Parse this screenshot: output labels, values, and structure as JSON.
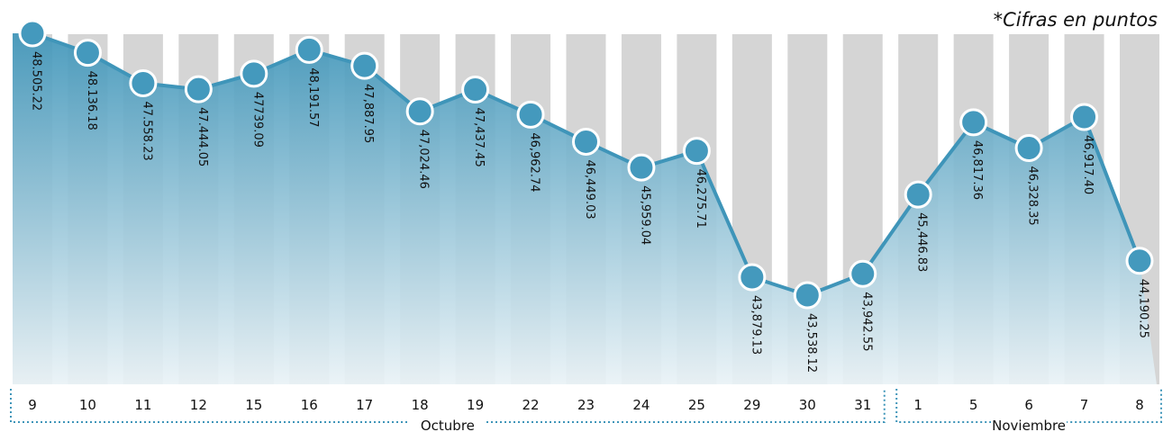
{
  "note": "*Cifras en puntos",
  "colors": {
    "area_top": "#3f95b9",
    "area_bottom": "#e9f2f6",
    "column": "#d5d5d5",
    "line": "#3f95b9",
    "marker_fill": "#4499bd",
    "marker_stroke": "#ffffff",
    "bracket": "#3f95b9"
  },
  "chart_data": {
    "type": "area",
    "title": "",
    "xlabel": "",
    "ylabel": "",
    "categories": [
      "9",
      "10",
      "11",
      "12",
      "15",
      "16",
      "17",
      "18",
      "19",
      "22",
      "23",
      "24",
      "25",
      "29",
      "30",
      "31",
      "1",
      "5",
      "6",
      "7",
      "8"
    ],
    "values": [
      48505.22,
      48136.18,
      47558.23,
      47444.05,
      47739.09,
      48191.57,
      47887.95,
      47024.46,
      47437.45,
      46962.74,
      46449.03,
      45959.04,
      46275.71,
      43879.13,
      43538.12,
      43942.55,
      45446.83,
      46817.36,
      46328.35,
      46917.4,
      44190.25
    ],
    "value_labels": [
      "48.505.22",
      "48.136.18",
      "47.558.23",
      "47.444.05",
      "47739.09",
      "48,191.57",
      "47,887.95",
      "47,024.46",
      "47,437.45",
      "46,962.74",
      "46,449.03",
      "45,959.04",
      "46,275.71",
      "43,879.13",
      "43,538.12",
      "43,942.55",
      "45,446.83",
      "46,817.36",
      "46,328.35",
      "46,917.40",
      "44,190.25"
    ],
    "months": [
      {
        "label": "Octubre",
        "start": 0,
        "end": 15
      },
      {
        "label": "Noviembre",
        "start": 16,
        "end": 20
      }
    ],
    "grid": false,
    "legend": "none"
  }
}
